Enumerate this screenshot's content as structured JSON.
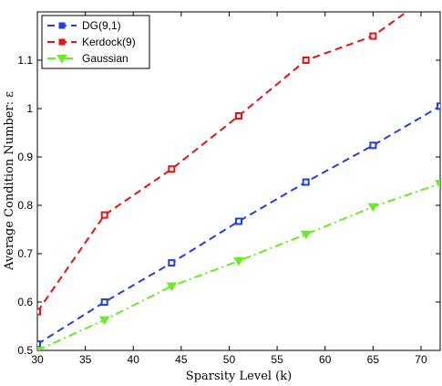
{
  "chart_data": {
    "type": "line",
    "xlabel": "Sparsity Level (k)",
    "ylabel": "Average Condition Number: ε",
    "xlim": [
      30,
      72
    ],
    "ylim": [
      0.5,
      1.2
    ],
    "xticks": [
      30,
      35,
      40,
      45,
      50,
      55,
      60,
      65,
      70
    ],
    "yticks": [
      0.5,
      0.6,
      0.7,
      0.8,
      0.9,
      1,
      1.1
    ],
    "xtick_labels": [
      "30",
      "35",
      "40",
      "45",
      "50",
      "55",
      "60",
      "65",
      "70"
    ],
    "ytick_labels": [
      "0.5",
      "0.6",
      "0.7",
      "0.8",
      "0.9",
      "1",
      "1.1"
    ],
    "grid": false,
    "legend_position": "top-left",
    "series": [
      {
        "name": "DG(9,1)",
        "color": "#1f3ef0",
        "marker": "square",
        "dash": "dashed",
        "x": [
          30,
          37,
          44,
          51,
          58,
          65,
          72
        ],
        "y": [
          0.513,
          0.6,
          0.681,
          0.767,
          0.848,
          0.924,
          1.005
        ]
      },
      {
        "name": "Kerdock(9)",
        "color": "#ee1111",
        "marker": "square",
        "dash": "dashed",
        "x": [
          30,
          37,
          44,
          51,
          58,
          65,
          72
        ],
        "y": [
          0.58,
          0.78,
          0.875,
          0.985,
          1.1,
          1.15,
          1.25
        ]
      },
      {
        "name": "Gaussian",
        "color": "#66ee22",
        "marker": "triangle-down",
        "dash": "dashdot",
        "x": [
          30,
          37,
          44,
          51,
          58,
          65,
          72
        ],
        "y": [
          0.5,
          0.563,
          0.633,
          0.685,
          0.74,
          0.797,
          0.845
        ]
      }
    ]
  }
}
